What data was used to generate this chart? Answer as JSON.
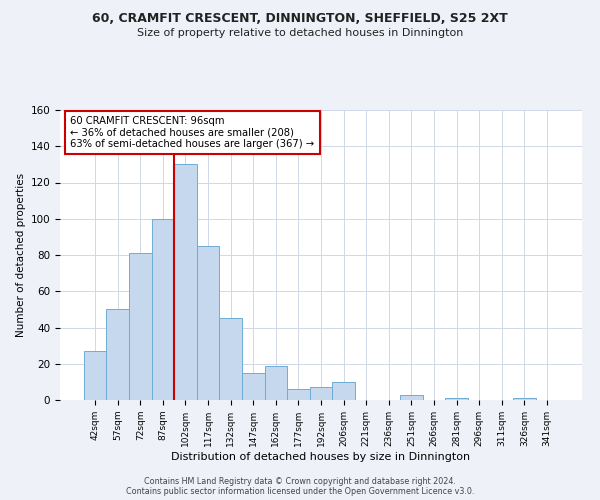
{
  "title": "60, CRAMFIT CRESCENT, DINNINGTON, SHEFFIELD, S25 2XT",
  "subtitle": "Size of property relative to detached houses in Dinnington",
  "xlabel": "Distribution of detached houses by size in Dinnington",
  "ylabel": "Number of detached properties",
  "bin_labels": [
    "42sqm",
    "57sqm",
    "72sqm",
    "87sqm",
    "102sqm",
    "117sqm",
    "132sqm",
    "147sqm",
    "162sqm",
    "177sqm",
    "192sqm",
    "206sqm",
    "221sqm",
    "236sqm",
    "251sqm",
    "266sqm",
    "281sqm",
    "296sqm",
    "311sqm",
    "326sqm",
    "341sqm"
  ],
  "bar_values": [
    27,
    50,
    81,
    100,
    130,
    85,
    45,
    15,
    19,
    6,
    7,
    10,
    0,
    0,
    3,
    0,
    1,
    0,
    0,
    1,
    0
  ],
  "bar_color": "#c5d8ed",
  "bar_edge_color": "#6facd5",
  "ylim": [
    0,
    160
  ],
  "yticks": [
    0,
    20,
    40,
    60,
    80,
    100,
    120,
    140,
    160
  ],
  "vline_x_index": 4,
  "vline_color": "#cc0000",
  "annotation_text_line1": "60 CRAMFIT CRESCENT: 96sqm",
  "annotation_text_line2": "← 36% of detached houses are smaller (208)",
  "annotation_text_line3": "63% of semi-detached houses are larger (367) →",
  "footer_line1": "Contains HM Land Registry data © Crown copyright and database right 2024.",
  "footer_line2": "Contains public sector information licensed under the Open Government Licence v3.0.",
  "background_color": "#eef2f8",
  "plot_background_color": "#ffffff",
  "grid_color": "#d0d8e8"
}
